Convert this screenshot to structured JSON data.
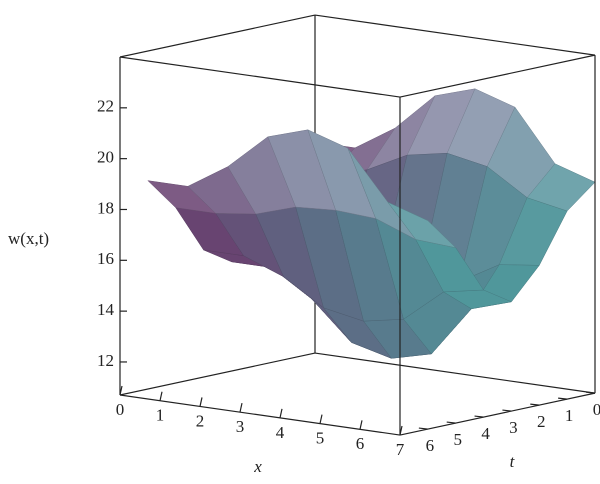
{
  "chart_data": {
    "type": "surface",
    "x_label": "x",
    "t_label": "t",
    "z_label": "w(x,t)",
    "x": [
      0,
      1,
      2,
      3,
      4,
      5,
      6,
      7
    ],
    "t": [
      0,
      1,
      2,
      3,
      4,
      5,
      6
    ],
    "z": [
      [
        19,
        19,
        20,
        21.5,
        22,
        21.5,
        19.5,
        19
      ],
      [
        18.1,
        18.1,
        18.6,
        19.4,
        19.7,
        19.4,
        18.4,
        18.1
      ],
      [
        16.2,
        16.2,
        15.7,
        15.1,
        14.9,
        15.1,
        16,
        16.2
      ],
      [
        15,
        15,
        14,
        12.5,
        12.1,
        12.5,
        14.5,
        15
      ],
      [
        15.7,
        15.7,
        15.1,
        14.1,
        13.8,
        14.1,
        15.4,
        15.7
      ],
      [
        17.6,
        17.6,
        17.8,
        18.3,
        18.4,
        18.3,
        17.7,
        17.6
      ],
      [
        18.9,
        18.9,
        19.9,
        21.3,
        21.8,
        21.3,
        19.4,
        18.9
      ]
    ],
    "xlim": [
      0,
      7
    ],
    "tlim": [
      0,
      7
    ],
    "zlim": [
      10.7,
      24
    ],
    "xticks": [
      0,
      1,
      2,
      3,
      4,
      5,
      6,
      7
    ],
    "tticks": [
      0,
      1,
      2,
      3,
      4,
      5,
      6
    ],
    "zticks": [
      12,
      14,
      16,
      18,
      20,
      22
    ],
    "colors": [
      "#6a3d6e",
      "#4e9e9e",
      "#f0d8f0"
    ]
  }
}
